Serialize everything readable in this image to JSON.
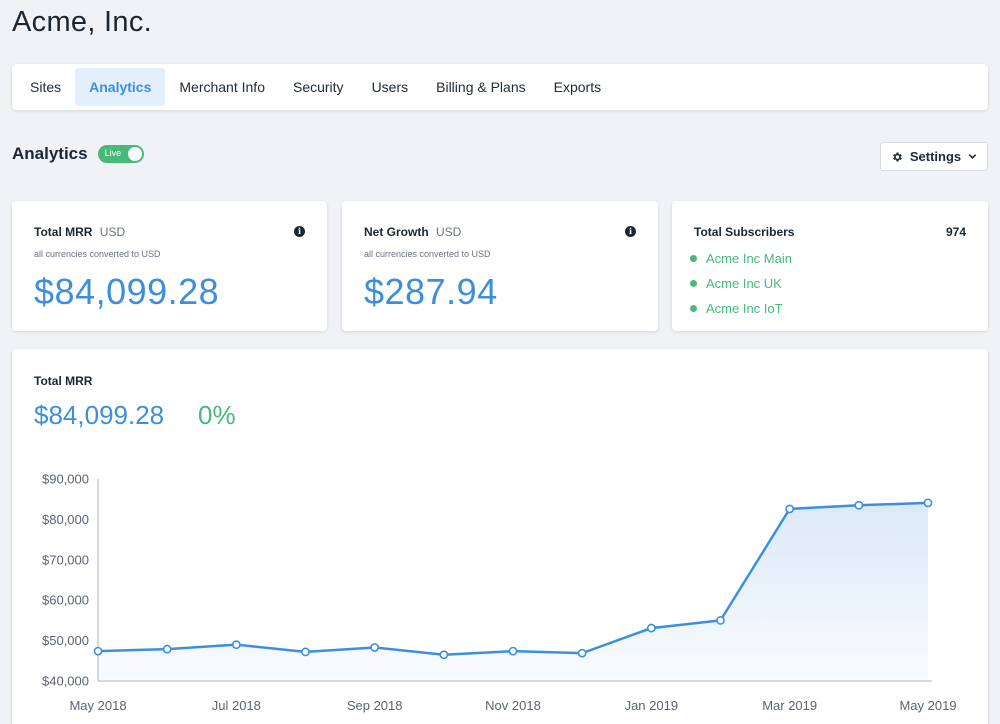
{
  "company": {
    "title": "Acme, Inc."
  },
  "tabs": [
    {
      "label": "Sites",
      "active": false
    },
    {
      "label": "Analytics",
      "active": true
    },
    {
      "label": "Merchant Info",
      "active": false
    },
    {
      "label": "Security",
      "active": false
    },
    {
      "label": "Users",
      "active": false
    },
    {
      "label": "Billing & Plans",
      "active": false
    },
    {
      "label": "Exports",
      "active": false
    }
  ],
  "section": {
    "title": "Analytics",
    "live_label": "Live",
    "live_on": true,
    "settings_label": "Settings",
    "settings_icon": "gear-icon",
    "settings_caret": "chevron-down-icon"
  },
  "cards": {
    "mrr": {
      "label": "Total MRR",
      "unit": "USD",
      "note": "all currencies converted to USD",
      "value": "$84,099.28",
      "info_icon": "i"
    },
    "growth": {
      "label": "Net Growth",
      "unit": "USD",
      "note": "all currencies converted to USD",
      "value": "$287.94",
      "info_icon": "i"
    },
    "subscribers": {
      "label": "Total Subscribers",
      "count": "974",
      "sites": [
        "Acme Inc Main",
        "Acme Inc UK",
        "Acme Inc IoT"
      ]
    }
  },
  "colors": {
    "accent": "#3d8fdd",
    "positive": "#48b97a",
    "area_fill": "#dbe9f8"
  },
  "chart_panel": {
    "title": "Total MRR",
    "value": "$84,099.28",
    "change": "0%"
  },
  "chart_data": {
    "type": "area",
    "x": [
      "May 2018",
      "Jun 2018",
      "Jul 2018",
      "Aug 2018",
      "Sep 2018",
      "Oct 2018",
      "Nov 2018",
      "Dec 2018",
      "Jan 2019",
      "Feb 2019",
      "Mar 2019",
      "Apr 2019",
      "May 2019"
    ],
    "x_tick_labels": [
      "May 2018",
      "Jul 2018",
      "Sep 2018",
      "Nov 2018",
      "Jan 2019",
      "Mar 2019",
      "May 2019"
    ],
    "series": [
      {
        "values": [
          47400,
          47900,
          49000,
          47200,
          48300,
          46500,
          47400,
          46900,
          53100,
          55000,
          82600,
          83500,
          84099
        ]
      }
    ],
    "y_ticks": [
      "$40,000",
      "$50,000",
      "$60,000",
      "$70,000",
      "$80,000",
      "$90,000"
    ],
    "ylim": [
      40000,
      90000
    ],
    "grid": false,
    "legend": "none"
  }
}
